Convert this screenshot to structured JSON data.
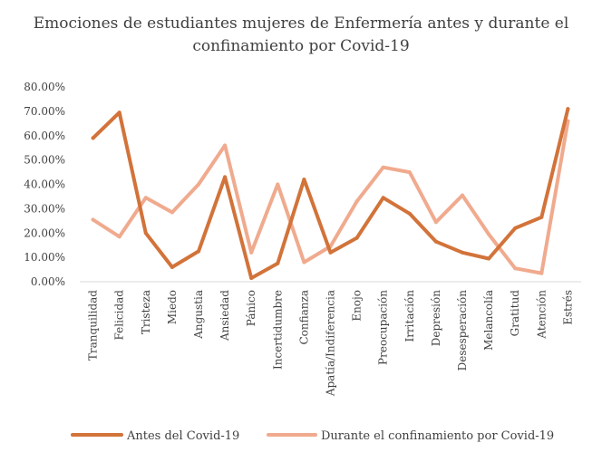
{
  "chart_data": {
    "type": "line",
    "title_line1": "Emociones de estudiantes mujeres de Enfermería antes y durante el",
    "title_line2": "confinamiento por Covid-19",
    "categories": [
      "Tranquilidad",
      "Felicidad",
      "Tristeza",
      "Miedo",
      "Angustia",
      "Ansiedad",
      "Pánico",
      "Incertidumbre",
      "Confianza",
      "Apatía/Indiferencia",
      "Enojo",
      "Preocupación",
      "Irritación",
      "Depresión",
      "Desesperación",
      "Melancolía",
      "Gratitud",
      "Atención",
      "Estrés"
    ],
    "series": [
      {
        "name": "Antes del Covid-19",
        "color": "#D2733A",
        "values": [
          59,
          69.5,
          20,
          6,
          12.5,
          43,
          1.5,
          7.5,
          42,
          12,
          18,
          34.5,
          28,
          16.5,
          12,
          9.5,
          22,
          26.5,
          71
        ]
      },
      {
        "name": "Durante el confinamiento por Covid-19",
        "color": "#F0AA8E",
        "values": [
          25.5,
          18.5,
          34.5,
          28.5,
          40,
          56,
          12,
          40,
          8,
          14.5,
          33,
          47,
          45,
          24.5,
          35.5,
          19.5,
          5.5,
          3.5,
          66
        ]
      }
    ],
    "yticks": [
      "0.00%",
      "10.00%",
      "20.00%",
      "30.00%",
      "40.00%",
      "50.00%",
      "60.00%",
      "70.00%",
      "80.00%"
    ],
    "ylim": [
      0,
      80
    ],
    "xlabel": "",
    "ylabel": "",
    "grid": false,
    "legend_position": "bottom"
  }
}
